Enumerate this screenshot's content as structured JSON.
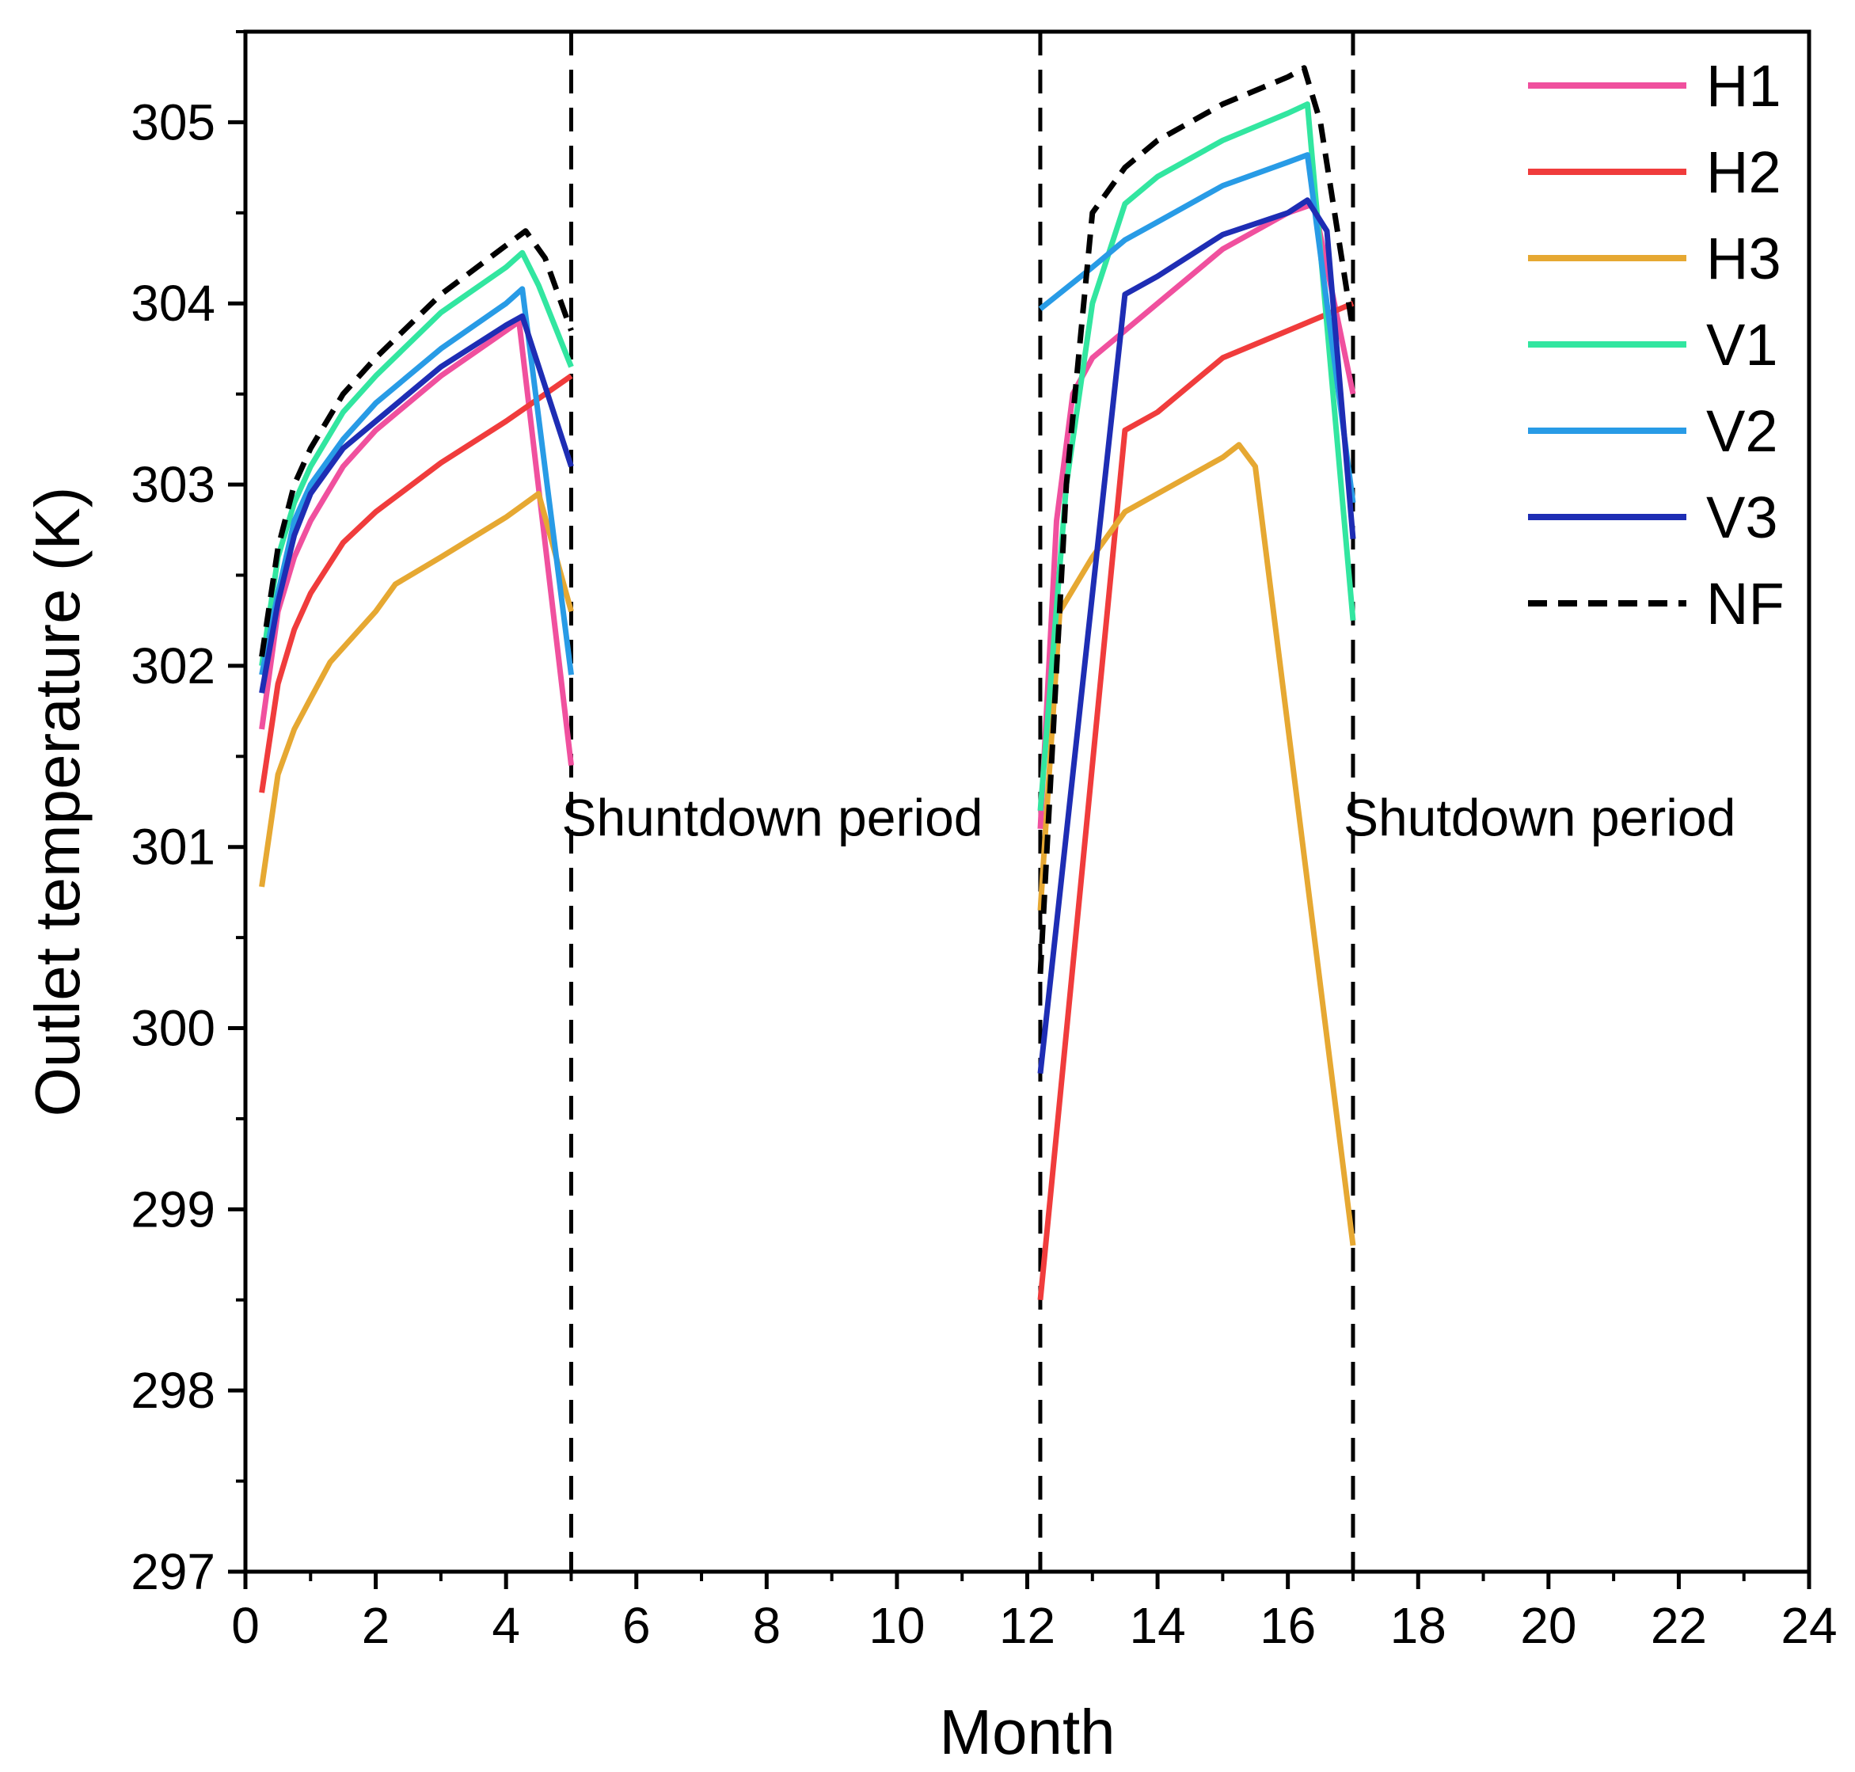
{
  "chart_data": {
    "type": "line",
    "title": "",
    "xlabel": "Month",
    "ylabel": "Outlet temperature (K)",
    "xlim": [
      0,
      24
    ],
    "ylim": [
      297,
      305.5
    ],
    "xticks": [
      0,
      2,
      4,
      6,
      8,
      10,
      12,
      14,
      16,
      18,
      20,
      22,
      24
    ],
    "yticks": [
      297,
      298,
      299,
      300,
      301,
      302,
      303,
      304,
      305
    ],
    "grid": false,
    "legend_position": "top-right",
    "vlines": [
      5,
      12.2,
      17
    ],
    "annotations": [
      {
        "text": "Shuntdown period",
        "x": 5,
        "y": 301.15
      },
      {
        "text": "Shutdown period",
        "x": 17,
        "y": 301.15
      }
    ],
    "series": [
      {
        "name": "H1",
        "color": "#f0509e",
        "dash": false,
        "segments": [
          {
            "x": [
              0.25,
              0.5,
              0.75,
              1.0,
              1.5,
              2.0,
              3.0,
              4.0,
              4.2,
              5.0
            ],
            "y": [
              301.65,
              302.3,
              302.6,
              302.8,
              303.1,
              303.3,
              303.6,
              303.85,
              303.9,
              301.45
            ]
          },
          {
            "x": [
              12.2,
              12.45,
              12.7,
              13.0,
              13.5,
              14.0,
              15.0,
              16.0,
              16.4,
              17.0
            ],
            "y": [
              301.1,
              302.8,
              303.5,
              303.7,
              303.85,
              304.0,
              304.3,
              304.5,
              304.55,
              303.5
            ]
          }
        ]
      },
      {
        "name": "H2",
        "color": "#f03c3c",
        "dash": false,
        "segments": [
          {
            "x": [
              0.25,
              0.5,
              0.75,
              1.0,
              1.5,
              2.0,
              3.0,
              4.0,
              5.0
            ],
            "y": [
              301.3,
              301.9,
              302.2,
              302.4,
              302.68,
              302.85,
              303.12,
              303.35,
              303.6
            ]
          },
          {
            "x": [
              12.2,
              13.5,
              14.0,
              15.0,
              16.0,
              17.0
            ],
            "y": [
              298.5,
              303.3,
              303.4,
              303.7,
              303.85,
              304.0
            ]
          }
        ]
      },
      {
        "name": "H3",
        "color": "#e6a832",
        "dash": false,
        "segments": [
          {
            "x": [
              0.25,
              0.5,
              0.75,
              1.0,
              1.3,
              2.0,
              2.3,
              3.0,
              4.0,
              4.5,
              5.0
            ],
            "y": [
              300.78,
              301.4,
              301.65,
              301.82,
              302.02,
              302.3,
              302.45,
              302.6,
              302.82,
              302.95,
              302.3
            ]
          },
          {
            "x": [
              12.2,
              12.5,
              13.0,
              13.5,
              14.0,
              15.0,
              15.25,
              15.5,
              17.0
            ],
            "y": [
              300.65,
              302.3,
              302.6,
              302.85,
              302.95,
              303.15,
              303.22,
              303.1,
              298.8
            ]
          }
        ]
      },
      {
        "name": "V1",
        "color": "#32e6a0",
        "dash": false,
        "segments": [
          {
            "x": [
              0.25,
              0.5,
              0.75,
              1.0,
              1.5,
              2.0,
              3.0,
              4.0,
              4.25,
              4.5,
              5.0
            ],
            "y": [
              302.0,
              302.6,
              302.9,
              303.1,
              303.4,
              303.6,
              303.95,
              304.2,
              304.28,
              304.1,
              303.65
            ]
          },
          {
            "x": [
              12.2,
              12.6,
              13.0,
              13.5,
              14.0,
              15.0,
              16.0,
              16.3,
              17.0
            ],
            "y": [
              301.2,
              303.0,
              304.0,
              304.55,
              304.7,
              304.9,
              305.05,
              305.1,
              302.25
            ]
          }
        ]
      },
      {
        "name": "V2",
        "color": "#289be6",
        "dash": false,
        "segments": [
          {
            "x": [
              0.25,
              0.5,
              0.75,
              1.0,
              1.5,
              2.0,
              3.0,
              4.0,
              4.25,
              5.0
            ],
            "y": [
              301.95,
              302.4,
              302.8,
              303.0,
              303.25,
              303.45,
              303.75,
              304.0,
              304.08,
              301.95
            ]
          },
          {
            "x": [
              12.2,
              13.0,
              13.5,
              14.0,
              15.0,
              16.0,
              16.3,
              17.0
            ],
            "y": [
              303.97,
              304.2,
              304.35,
              304.45,
              304.65,
              304.78,
              304.82,
              302.9
            ]
          }
        ]
      },
      {
        "name": "V3",
        "color": "#1e2db4",
        "dash": false,
        "segments": [
          {
            "x": [
              0.25,
              0.5,
              0.75,
              1.0,
              1.5,
              2.0,
              3.0,
              4.0,
              4.25,
              5.0
            ],
            "y": [
              301.85,
              302.35,
              302.72,
              302.95,
              303.2,
              303.35,
              303.65,
              303.88,
              303.93,
              303.1
            ]
          },
          {
            "x": [
              12.2,
              13.5,
              14.0,
              15.0,
              16.0,
              16.3,
              16.6,
              17.0
            ],
            "y": [
              299.75,
              304.05,
              304.15,
              304.38,
              304.5,
              304.57,
              304.4,
              302.7
            ]
          }
        ]
      },
      {
        "name": "NF",
        "color": "#000000",
        "dash": true,
        "segments": [
          {
            "x": [
              0.25,
              0.5,
              0.75,
              1.0,
              1.5,
              2.0,
              3.0,
              4.0,
              4.3,
              4.6,
              5.0
            ],
            "y": [
              302.05,
              302.65,
              303.0,
              303.2,
              303.5,
              303.7,
              304.05,
              304.32,
              304.4,
              304.25,
              303.85
            ]
          },
          {
            "x": [
              12.2,
              12.6,
              13.0,
              13.5,
              14.0,
              15.0,
              16.0,
              16.25,
              16.5,
              17.0
            ],
            "y": [
              300.3,
              303.0,
              304.5,
              304.75,
              304.9,
              305.1,
              305.25,
              305.3,
              305.0,
              303.85
            ]
          }
        ]
      }
    ]
  }
}
